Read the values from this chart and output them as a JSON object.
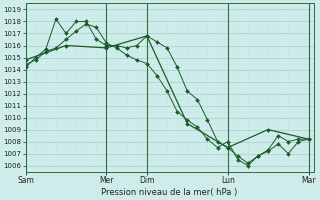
{
  "xlabel": "Pression niveau de la mer( hPa )",
  "bg_color": "#ceecea",
  "grid_color_major": "#aaccca",
  "grid_color_minor": "#c4e4e2",
  "line_color": "#1a5c28",
  "sep_color": "#2d6e3a",
  "ylim": [
    1005.5,
    1019.5
  ],
  "yticks": [
    1006,
    1007,
    1008,
    1009,
    1010,
    1011,
    1012,
    1013,
    1014,
    1015,
    1016,
    1017,
    1018,
    1019
  ],
  "day_labels": [
    "Sam",
    "Mer",
    "Dim",
    "Lun",
    "Mar"
  ],
  "day_x": [
    0,
    96,
    144,
    240,
    336
  ],
  "xlim": [
    0,
    342
  ],
  "line1_x": [
    0,
    12,
    24,
    36,
    48,
    60,
    72,
    84,
    96,
    108,
    120,
    132,
    144,
    156,
    168,
    180,
    192,
    204,
    216,
    228,
    240,
    252,
    264,
    276,
    288,
    300,
    312,
    324,
    336
  ],
  "line1_y": [
    1014.2,
    1015.0,
    1015.7,
    1018.2,
    1017.0,
    1018.0,
    1018.0,
    1016.5,
    1016.0,
    1016.0,
    1015.8,
    1016.0,
    1016.8,
    1016.3,
    1015.8,
    1014.2,
    1012.2,
    1011.5,
    1009.8,
    1008.0,
    1007.5,
    1006.8,
    1006.2,
    1006.8,
    1007.3,
    1008.5,
    1008.0,
    1008.2,
    1008.2
  ],
  "line2_x": [
    0,
    12,
    24,
    36,
    48,
    60,
    72,
    84,
    96,
    108,
    120,
    132,
    144,
    156,
    168,
    180,
    192,
    204,
    216,
    228,
    240,
    252,
    264,
    276,
    288,
    300,
    312,
    324,
    336
  ],
  "line2_y": [
    1014.4,
    1014.8,
    1015.5,
    1015.8,
    1016.5,
    1017.2,
    1017.8,
    1017.5,
    1016.2,
    1015.8,
    1015.2,
    1014.8,
    1014.5,
    1013.5,
    1012.2,
    1010.5,
    1009.8,
    1009.2,
    1008.2,
    1007.5,
    1008.0,
    1006.5,
    1006.0,
    1006.8,
    1007.2,
    1007.8,
    1007.0,
    1008.0,
    1008.2
  ],
  "line3_x": [
    0,
    48,
    96,
    144,
    192,
    240,
    288,
    336
  ],
  "line3_y": [
    1014.8,
    1016.0,
    1015.8,
    1016.8,
    1009.5,
    1007.5,
    1009.0,
    1008.2
  ]
}
